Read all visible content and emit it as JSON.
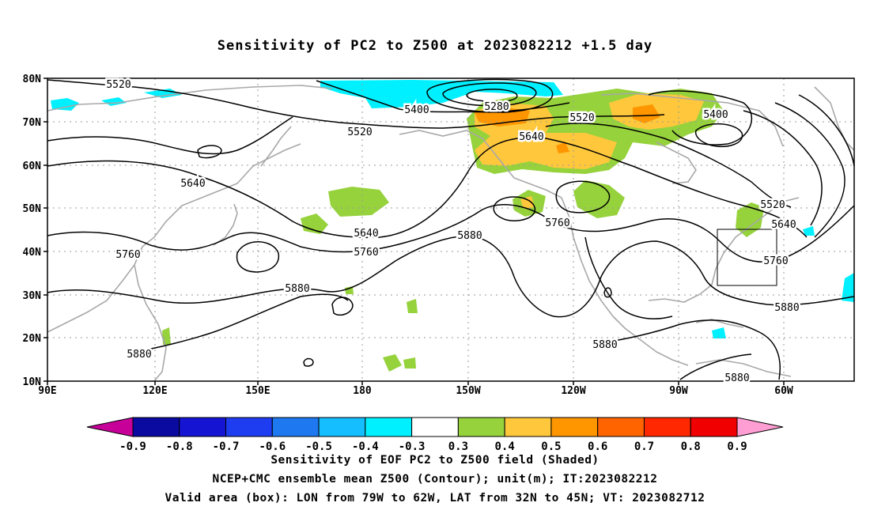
{
  "title": "Sensitivity of PC2 to Z500 at 2023082212 +1.5 day",
  "lat_labels": [
    "80N",
    "70N",
    "60N",
    "50N",
    "40N",
    "30N",
    "20N",
    "10N"
  ],
  "lon_labels": [
    "90E",
    "120E",
    "150E",
    "180",
    "150W",
    "120W",
    "90W",
    "60W"
  ],
  "contour_labels": [
    "5520",
    "5400",
    "5280",
    "5520",
    "5640",
    "5520",
    "5400",
    "5640",
    "5640",
    "5760",
    "5760",
    "5880",
    "5760",
    "5880",
    "5520",
    "5640",
    "5760",
    "5880",
    "5880",
    "5880",
    "5880"
  ],
  "colorbar": {
    "labels": [
      "-0.9",
      "-0.8",
      "-0.7",
      "-0.6",
      "-0.5",
      "-0.4",
      "-0.3",
      "0.3",
      "0.4",
      "0.5",
      "0.6",
      "0.7",
      "0.8",
      "0.9"
    ],
    "colors": [
      "#c8009a",
      "#0a0aa0",
      "#1414d2",
      "#1e3cf0",
      "#1e78f0",
      "#14beff",
      "#00f0ff",
      "#ffffff",
      "#96d23c",
      "#ffc83c",
      "#ff9600",
      "#ff6400",
      "#ff2800",
      "#f00000",
      "#ff9ed2"
    ]
  },
  "box": {
    "lon_from": "79W",
    "lon_to": "62W",
    "lat_from": "32N",
    "lat_to": "45N"
  },
  "captions": [
    "Sensitivity of EOF PC2 to Z500 field (Shaded)",
    "NCEP+CMC ensemble mean Z500 (Contour); unit(m); IT:2023082212",
    "Valid area (box): LON from 79W to 62W, LAT from 32N to 45N; VT: 2023082712"
  ]
}
